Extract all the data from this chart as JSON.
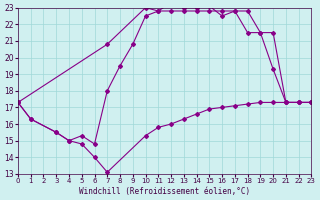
{
  "xlabel": "Windchill (Refroidissement éolien,°C)",
  "bg_color": "#d0f0f0",
  "grid_color": "#a0d8d8",
  "line_color": "#880088",
  "xlim": [
    0,
    23
  ],
  "ylim": [
    13,
    23
  ],
  "yticks": [
    13,
    14,
    15,
    16,
    17,
    18,
    19,
    20,
    21,
    22,
    23
  ],
  "xticks": [
    0,
    1,
    2,
    3,
    4,
    5,
    6,
    7,
    8,
    9,
    10,
    11,
    12,
    13,
    14,
    15,
    16,
    17,
    18,
    19,
    20,
    21,
    22,
    23
  ],
  "line1_x": [
    0,
    1,
    3,
    4,
    5,
    6,
    7,
    10,
    11,
    12,
    13,
    14,
    15,
    16,
    17,
    18,
    19,
    20,
    21,
    22,
    23
  ],
  "line1_y": [
    17.3,
    16.3,
    15.5,
    15.0,
    14.8,
    14.0,
    13.1,
    15.3,
    15.8,
    16.0,
    16.3,
    16.6,
    16.9,
    17.0,
    17.1,
    17.2,
    17.3,
    17.3,
    17.3,
    17.3,
    17.3
  ],
  "line2_x": [
    0,
    1,
    3,
    4,
    5,
    6,
    7,
    8,
    9,
    10,
    11,
    12,
    13,
    14,
    15,
    16,
    17,
    18,
    19,
    20,
    21,
    22,
    23
  ],
  "line2_y": [
    17.3,
    16.3,
    15.5,
    15.0,
    15.3,
    14.8,
    18.0,
    19.5,
    20.8,
    22.5,
    22.8,
    22.8,
    22.8,
    22.8,
    22.8,
    22.8,
    22.8,
    21.5,
    21.5,
    21.5,
    17.3,
    17.3,
    17.3
  ],
  "line3_x": [
    0,
    7,
    10,
    11,
    12,
    13,
    14,
    15,
    16,
    17,
    18,
    19,
    20,
    21,
    22,
    23
  ],
  "line3_y": [
    17.3,
    20.8,
    23.0,
    22.8,
    23.3,
    23.0,
    23.0,
    23.1,
    22.5,
    22.8,
    22.8,
    21.5,
    19.3,
    17.3,
    17.3,
    17.3
  ]
}
